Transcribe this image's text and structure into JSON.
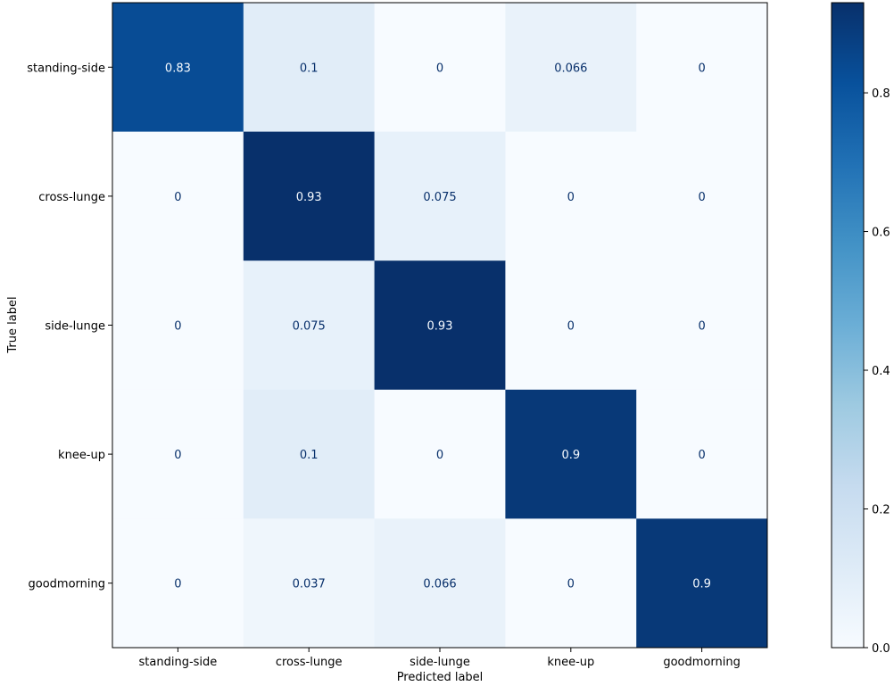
{
  "chart_data": {
    "type": "heatmap",
    "title": "",
    "xlabel": "Predicted label",
    "ylabel": "True label",
    "x_categories": [
      "standing-side",
      "cross-lunge",
      "side-lunge",
      "knee-up",
      "goodmorning"
    ],
    "y_categories": [
      "standing-side",
      "cross-lunge",
      "side-lunge",
      "knee-up",
      "goodmorning"
    ],
    "values": [
      [
        0.83,
        0.1,
        0,
        0.066,
        0
      ],
      [
        0,
        0.93,
        0.075,
        0,
        0
      ],
      [
        0,
        0.075,
        0.93,
        0,
        0
      ],
      [
        0,
        0.1,
        0,
        0.9,
        0
      ],
      [
        0,
        0.037,
        0.066,
        0,
        0.9
      ]
    ],
    "cell_labels": [
      [
        "0.83",
        "0.1",
        "0",
        "0.066",
        "0"
      ],
      [
        "0",
        "0.93",
        "0.075",
        "0",
        "0"
      ],
      [
        "0",
        "0.075",
        "0.93",
        "0",
        "0"
      ],
      [
        "0",
        "0.1",
        "0",
        "0.9",
        "0"
      ],
      [
        "0",
        "0.037",
        "0.066",
        "0",
        "0.9"
      ]
    ],
    "colormap": "Blues",
    "vmin": 0,
    "vmax": 0.93,
    "colorbar_ticks": [
      0.0,
      0.2,
      0.4,
      0.6,
      0.8
    ],
    "colorbar_tick_labels": [
      "0.0",
      "0.2",
      "0.4",
      "0.6",
      "0.8"
    ],
    "text_color_light": "#f7fbff",
    "text_color_dark": "#08306b"
  }
}
